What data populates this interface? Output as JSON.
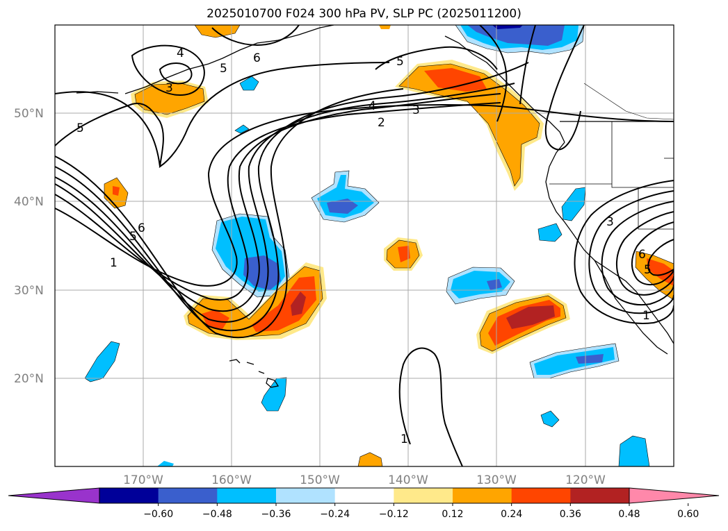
{
  "title": "2025010700 F024 300 hPa PV, SLP PC (2025011200)",
  "lat_labels": [
    {
      "text": "50°N",
      "lat": 50
    },
    {
      "text": "40°N",
      "lat": 40
    },
    {
      "text": "30°N",
      "lat": 30
    },
    {
      "text": "20°N",
      "lat": 20
    }
  ],
  "lon_labels": [
    {
      "text": "170°W",
      "lon": -170
    },
    {
      "text": "160°W",
      "lon": -160
    },
    {
      "text": "150°W",
      "lon": -150
    },
    {
      "text": "140°W",
      "lon": -140
    },
    {
      "text": "130°W",
      "lon": -130
    },
    {
      "text": "120°W",
      "lon": -120
    }
  ],
  "map_extent": {
    "lon_min": -180,
    "lon_max": -110,
    "lat_min": 10,
    "lat_max": 60
  },
  "colorbar": {
    "tick_labels": [
      "−0.60",
      "−0.48",
      "−0.36",
      "−0.24",
      "−0.12",
      "0.12",
      "0.24",
      "0.36",
      "0.48",
      "0.60"
    ],
    "colors": [
      "#9933cc",
      "#000099",
      "#3a5fcd",
      "#00bfff",
      "#b0e2ff",
      "#ffffff",
      "#ffe98a",
      "#ffa500",
      "#ff4500",
      "#b22222",
      "#ff88aa"
    ]
  },
  "contour_labels": [
    "4",
    "3",
    "5",
    "6",
    "5",
    "4",
    "3",
    "2",
    "5",
    "6",
    "5",
    "1",
    "3",
    "6",
    "5",
    "1",
    "1"
  ]
}
